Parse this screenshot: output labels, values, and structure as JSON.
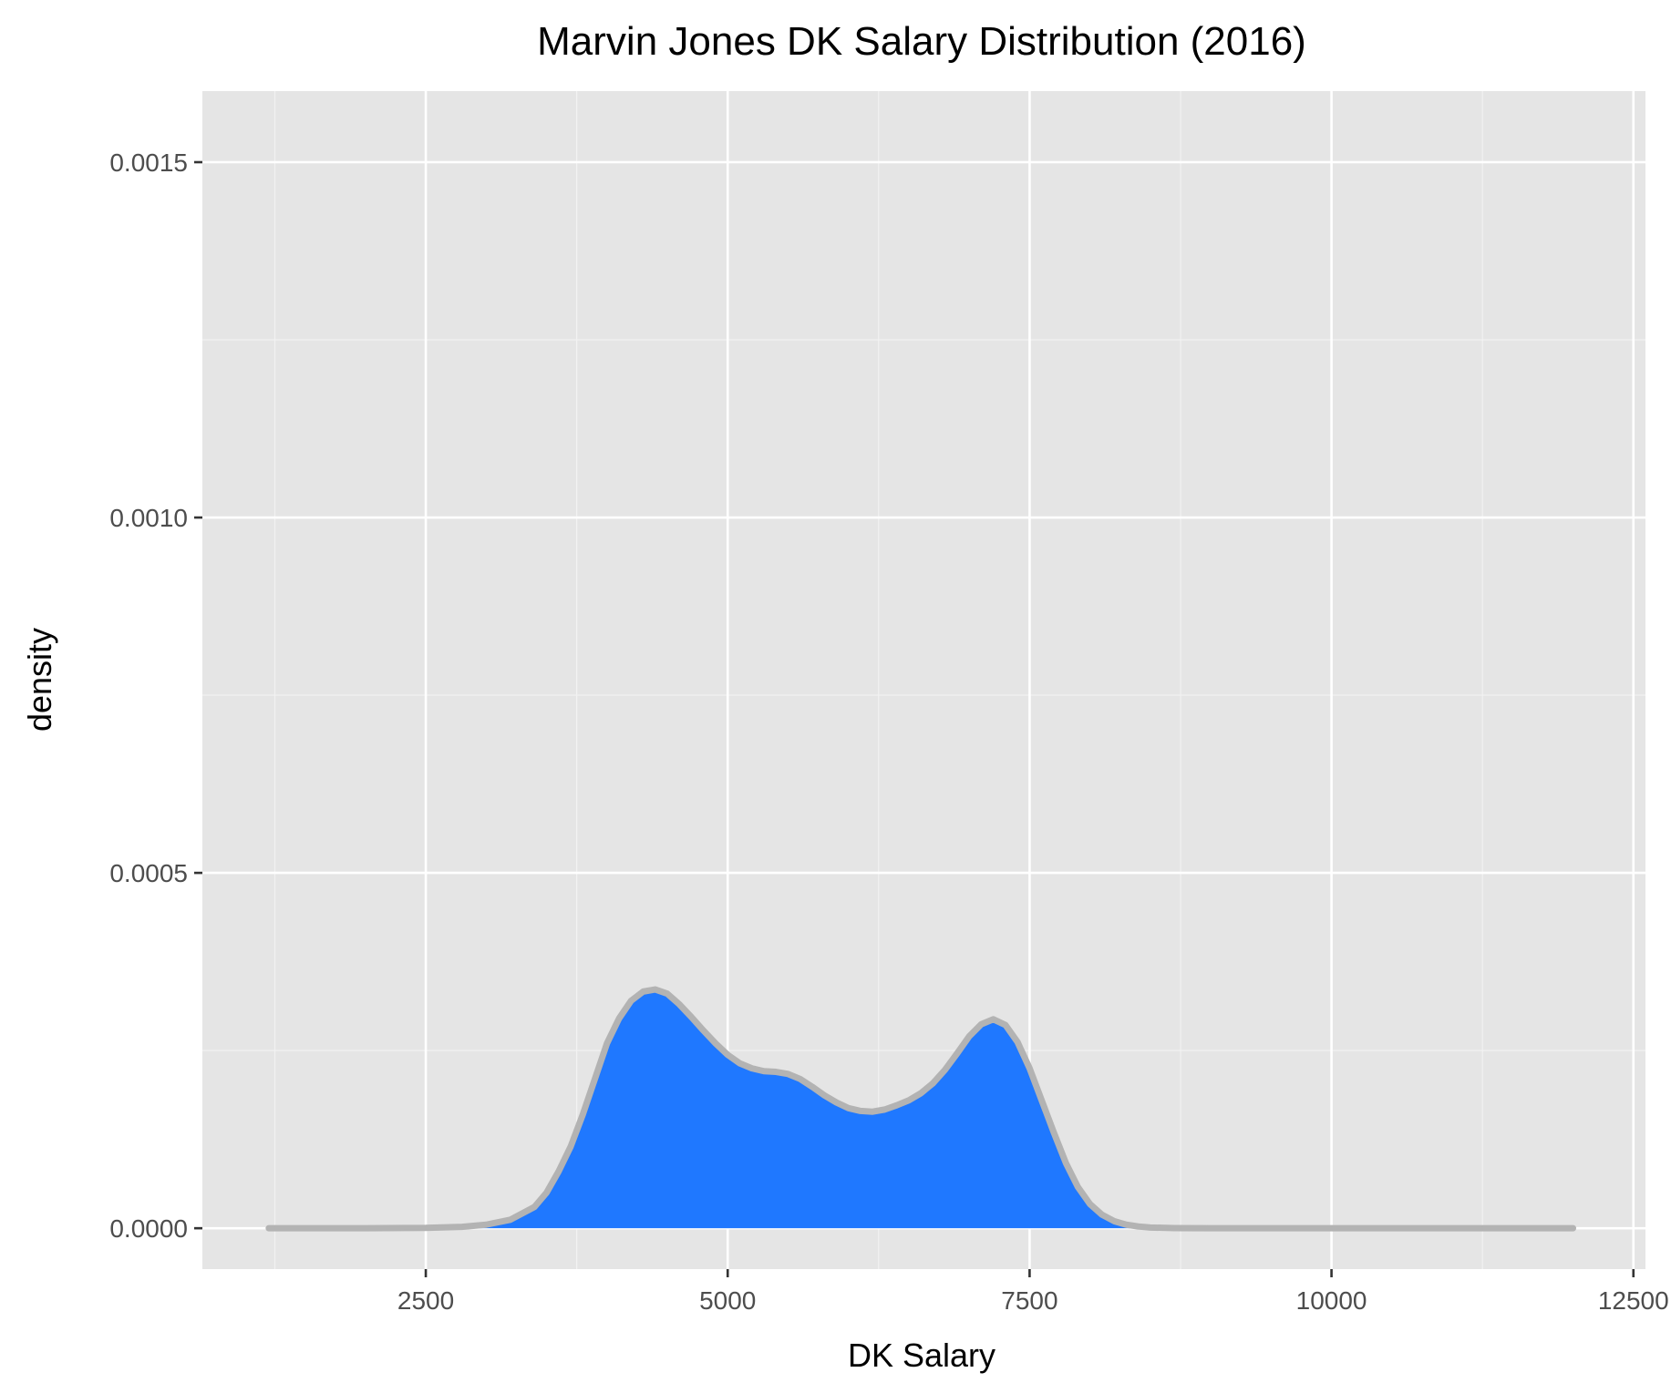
{
  "chart_data": {
    "type": "area",
    "title": "Marvin Jones DK Salary Distribution (2016)",
    "xlabel": "DK Salary",
    "ylabel": "density",
    "xlim": [
      650,
      12600
    ],
    "ylim": [
      -5.75e-05,
      0.0016
    ],
    "x_ticks": [
      {
        "value": 2500,
        "label": "2500"
      },
      {
        "value": 5000,
        "label": "5000"
      },
      {
        "value": 7500,
        "label": "7500"
      },
      {
        "value": 10000,
        "label": "10000"
      },
      {
        "value": 12500,
        "label": "12500"
      }
    ],
    "x_minor_ticks": [
      1250,
      3750,
      6250,
      8750,
      11250
    ],
    "y_ticks": [
      {
        "value": 0.0,
        "label": "0.0000"
      },
      {
        "value": 0.0005,
        "label": "0.0005"
      },
      {
        "value": 0.001,
        "label": "0.0010"
      },
      {
        "value": 0.0015,
        "label": "0.0015"
      }
    ],
    "y_minor_ticks": [
      0.00025,
      0.00075,
      0.00125
    ],
    "grid": true,
    "series": [
      {
        "fill_color": "#1f78ff",
        "line_color": "#b3b3b3",
        "x": [
          1200,
          2000,
          2500,
          2800,
          3000,
          3200,
          3400,
          3500,
          3600,
          3700,
          3800,
          3900,
          4000,
          4100,
          4200,
          4300,
          4400,
          4500,
          4600,
          4700,
          4800,
          4900,
          5000,
          5100,
          5200,
          5300,
          5400,
          5500,
          5600,
          5700,
          5800,
          5900,
          6000,
          6100,
          6200,
          6300,
          6400,
          6500,
          6600,
          6700,
          6800,
          6900,
          7000,
          7100,
          7200,
          7300,
          7400,
          7500,
          7600,
          7700,
          7800,
          7900,
          8000,
          8100,
          8200,
          8300,
          8400,
          8500,
          8700,
          9000,
          9500,
          10000,
          11000,
          12000
        ],
        "y": [
          0,
          0,
          5e-07,
          2e-06,
          5e-06,
          1.2e-05,
          3e-05,
          5e-05,
          8e-05,
          0.000115,
          0.00016,
          0.00021,
          0.00026,
          0.000295,
          0.00032,
          0.000333,
          0.000336,
          0.00033,
          0.000315,
          0.000297,
          0.000278,
          0.00026,
          0.000244,
          0.000232,
          0.000225,
          0.000221,
          0.00022,
          0.000217,
          0.00021,
          0.000199,
          0.000187,
          0.000177,
          0.000169,
          0.000165,
          0.000164,
          0.000167,
          0.000173,
          0.00018,
          0.00019,
          0.000204,
          0.000223,
          0.000246,
          0.00027,
          0.000287,
          0.000294,
          0.000286,
          0.000262,
          0.000225,
          0.00018,
          0.000135,
          9.2e-05,
          5.8e-05,
          3.4e-05,
          1.9e-05,
          1e-05,
          5e-06,
          2.5e-06,
          1e-06,
          2e-07,
          0,
          0,
          0,
          0,
          0
        ]
      }
    ]
  }
}
